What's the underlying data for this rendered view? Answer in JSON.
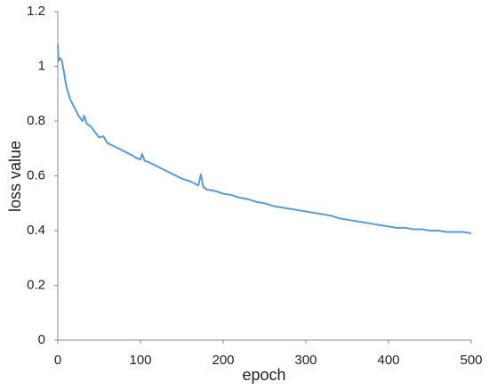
{
  "chart_data": {
    "type": "line",
    "x_label": "epoch",
    "y_label": "loss value",
    "x": [
      0,
      1,
      3,
      5,
      8,
      10,
      15,
      20,
      25,
      30,
      32,
      35,
      40,
      45,
      50,
      55,
      60,
      70,
      80,
      90,
      95,
      100,
      102,
      105,
      110,
      120,
      130,
      140,
      150,
      160,
      170,
      173,
      176,
      180,
      190,
      200,
      210,
      220,
      230,
      240,
      250,
      260,
      270,
      280,
      290,
      300,
      310,
      320,
      330,
      340,
      350,
      360,
      370,
      380,
      390,
      400,
      410,
      420,
      430,
      440,
      450,
      460,
      470,
      480,
      490,
      500
    ],
    "series": [
      {
        "name": "loss",
        "color": "#5b9bd5",
        "values": [
          1.08,
          1.02,
          1.03,
          1.02,
          0.97,
          0.93,
          0.88,
          0.85,
          0.82,
          0.8,
          0.82,
          0.79,
          0.78,
          0.76,
          0.74,
          0.745,
          0.72,
          0.705,
          0.69,
          0.675,
          0.665,
          0.66,
          0.68,
          0.655,
          0.65,
          0.635,
          0.62,
          0.605,
          0.59,
          0.58,
          0.565,
          0.605,
          0.56,
          0.55,
          0.545,
          0.535,
          0.53,
          0.52,
          0.515,
          0.505,
          0.5,
          0.49,
          0.485,
          0.48,
          0.475,
          0.47,
          0.465,
          0.46,
          0.455,
          0.445,
          0.44,
          0.435,
          0.43,
          0.425,
          0.42,
          0.415,
          0.41,
          0.41,
          0.405,
          0.405,
          0.4,
          0.4,
          0.395,
          0.395,
          0.395,
          0.39
        ]
      }
    ],
    "xlim": [
      0,
      500
    ],
    "xticks": [
      0,
      100,
      200,
      300,
      400,
      500
    ],
    "ylim": [
      0,
      1.2
    ],
    "yticks": [
      0,
      0.2,
      0.4,
      0.6,
      0.8,
      1,
      1.2
    ],
    "grid": false
  }
}
